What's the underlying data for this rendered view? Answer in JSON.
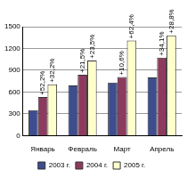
{
  "chart_data": {
    "type": "bar",
    "categories": [
      "Январь",
      "Февраль",
      "Март",
      "Апрель"
    ],
    "series": [
      {
        "name": "2003 г.",
        "color": "#3d4d8f",
        "values": [
          350,
          690,
          730,
          800
        ]
      },
      {
        "name": "2004 г.",
        "color": "#8e3a5e",
        "values": [
          533,
          838,
          807,
          1073
        ]
      },
      {
        "name": "2005 г.",
        "color": "#ffffcc",
        "values": [
          705,
          1035,
          1311,
          1382
        ]
      }
    ],
    "ylim": [
      0,
      1500
    ],
    "yticks": [
      0,
      300,
      600,
      900,
      1200,
      1500
    ],
    "grid": true,
    "legend": "bottom",
    "annotations": [
      {
        "series": "2004 г.",
        "category": "Январь",
        "text": "+52,2%"
      },
      {
        "series": "2005 г.",
        "category": "Январь",
        "text": "+32,2%"
      },
      {
        "series": "2004 г.",
        "category": "Февраль",
        "text": "+21,5%"
      },
      {
        "series": "2005 г.",
        "category": "Февраль",
        "text": "+23,5%"
      },
      {
        "series": "2004 г.",
        "category": "Март",
        "text": "+10,6%"
      },
      {
        "series": "2005 г.",
        "category": "Март",
        "text": "+62,4%"
      },
      {
        "series": "2004 г.",
        "category": "Апрель",
        "text": "+34,1%"
      },
      {
        "series": "2005 г.",
        "category": "Апрель",
        "text": "+28,8%"
      }
    ]
  }
}
